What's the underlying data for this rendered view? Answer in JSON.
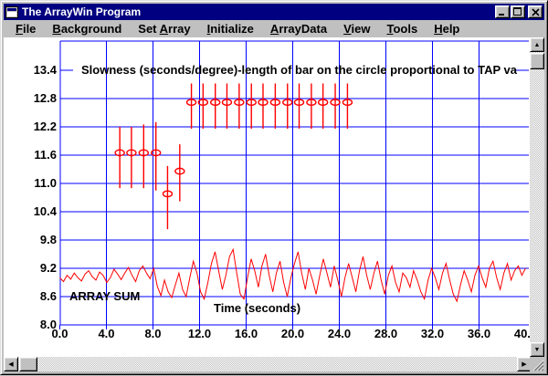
{
  "window": {
    "title": "The ArrayWin Program",
    "controls": [
      {
        "name": "minimize"
      },
      {
        "name": "maximize"
      },
      {
        "name": "close"
      }
    ]
  },
  "menu": {
    "items": [
      {
        "label": "File",
        "u": 0
      },
      {
        "label": "Background",
        "u": 0
      },
      {
        "label": "Set Array",
        "u": 4
      },
      {
        "label": "Initialize",
        "u": 0
      },
      {
        "label": "ArrayData",
        "u": 0
      },
      {
        "label": "View",
        "u": 0
      },
      {
        "label": "Tools",
        "u": 0
      },
      {
        "label": "Help",
        "u": 0
      }
    ]
  },
  "scrollbars": {
    "up": "▲",
    "down": "▼",
    "left": "◀",
    "right": "▶"
  },
  "chart_data": {
    "type": "scatter",
    "title": "Slowness (seconds/degree)-length of bar on the circle proportional to TAP va",
    "xlabel": "Time (seconds)",
    "series_label": "ARRAY SUM",
    "xlim": [
      0,
      40.5
    ],
    "ylim": [
      8.0,
      14.0
    ],
    "x_ticks": [
      0,
      4,
      8,
      12,
      16,
      20,
      24,
      28,
      32,
      36,
      40
    ],
    "x_tick_labels": [
      "0.0",
      "4.0",
      "8.0",
      "12.0",
      "16.0",
      "20.0",
      "24.0",
      "28.0",
      "32.0",
      "36.0",
      "40.0"
    ],
    "y_ticks": [
      13.4,
      12.8,
      12.2,
      11.6,
      11.0,
      10.4,
      9.8,
      9.2,
      8.6,
      8.0
    ],
    "y_tick_labels": [
      "13.4",
      "12.8",
      "12.2",
      "11.6",
      "11.0",
      "10.4",
      "9.8",
      "9.2",
      "8.6",
      "8.0"
    ],
    "grid": true,
    "colors": {
      "grid": "#0000ff",
      "data": "#ff0000",
      "text": "#000000"
    },
    "errorbar_points": [
      {
        "t": 5.15,
        "v": 11.65,
        "lo": 10.9,
        "hi": 12.2
      },
      {
        "t": 6.15,
        "v": 11.65,
        "lo": 10.9,
        "hi": 12.2
      },
      {
        "t": 7.2,
        "v": 11.65,
        "lo": 10.9,
        "hi": 12.25
      },
      {
        "t": 8.25,
        "v": 11.65,
        "lo": 10.85,
        "hi": 12.3
      },
      {
        "t": 9.25,
        "v": 10.78,
        "lo": 10.03,
        "hi": 11.37
      },
      {
        "t": 10.3,
        "v": 11.26,
        "lo": 10.62,
        "hi": 11.83
      },
      {
        "t": 11.3,
        "v": 12.72,
        "lo": 12.16,
        "hi": 13.12
      },
      {
        "t": 12.3,
        "v": 12.72,
        "lo": 12.16,
        "hi": 13.12
      },
      {
        "t": 13.35,
        "v": 12.72,
        "lo": 12.16,
        "hi": 13.12
      },
      {
        "t": 14.35,
        "v": 12.72,
        "lo": 12.16,
        "hi": 13.12
      },
      {
        "t": 15.4,
        "v": 12.72,
        "lo": 12.16,
        "hi": 13.12
      },
      {
        "t": 16.45,
        "v": 12.72,
        "lo": 12.16,
        "hi": 13.12
      },
      {
        "t": 17.45,
        "v": 12.72,
        "lo": 12.16,
        "hi": 13.12
      },
      {
        "t": 18.5,
        "v": 12.72,
        "lo": 12.16,
        "hi": 13.12
      },
      {
        "t": 19.55,
        "v": 12.72,
        "lo": 12.16,
        "hi": 13.12
      },
      {
        "t": 20.55,
        "v": 12.72,
        "lo": 12.16,
        "hi": 13.12
      },
      {
        "t": 21.6,
        "v": 12.72,
        "lo": 12.16,
        "hi": 13.12
      },
      {
        "t": 22.6,
        "v": 12.72,
        "lo": 12.16,
        "hi": 13.12
      },
      {
        "t": 23.65,
        "v": 12.72,
        "lo": 12.16,
        "hi": 13.12
      },
      {
        "t": 24.7,
        "v": 12.72,
        "lo": 12.16,
        "hi": 13.12
      }
    ],
    "array_sum_trace": {
      "t0": 0,
      "dt": 0.31,
      "values": [
        9.0,
        8.92,
        9.05,
        8.97,
        9.1,
        9.0,
        8.93,
        9.08,
        9.15,
        9.02,
        8.95,
        9.12,
        9.05,
        8.9,
        9.0,
        9.18,
        9.08,
        8.96,
        9.1,
        9.22,
        9.05,
        8.92,
        9.15,
        9.25,
        9.1,
        8.98,
        9.2,
        8.82,
        8.62,
        8.95,
        8.7,
        8.58,
        8.85,
        9.1,
        8.75,
        8.6,
        9.0,
        9.35,
        9.1,
        8.7,
        8.55,
        8.9,
        9.3,
        9.55,
        9.15,
        8.75,
        9.05,
        9.45,
        9.6,
        9.1,
        8.65,
        8.55,
        9.0,
        9.4,
        9.15,
        8.8,
        9.25,
        9.5,
        9.05,
        8.7,
        9.1,
        9.35,
        8.9,
        8.6,
        9.0,
        9.3,
        9.55,
        9.1,
        8.75,
        9.2,
        8.95,
        8.65,
        9.05,
        9.4,
        9.1,
        8.8,
        9.25,
        8.95,
        8.6,
        9.0,
        9.3,
        9.0,
        8.7,
        9.15,
        9.45,
        9.05,
        8.75,
        9.1,
        9.35,
        8.95,
        8.65,
        9.05,
        9.25,
        8.9,
        8.7,
        9.1,
        9.0,
        8.8,
        9.15,
        8.95,
        8.7,
        8.55,
        8.95,
        9.2,
        9.0,
        8.75,
        9.1,
        9.3,
        8.95,
        8.65,
        8.5,
        8.85,
        9.15,
        8.95,
        8.7,
        9.05,
        9.25,
        9.0,
        8.8,
        9.2,
        9.35,
        9.0,
        8.75,
        9.1,
        9.3,
        8.95,
        9.15,
        9.25,
        9.05,
        9.2
      ]
    }
  }
}
